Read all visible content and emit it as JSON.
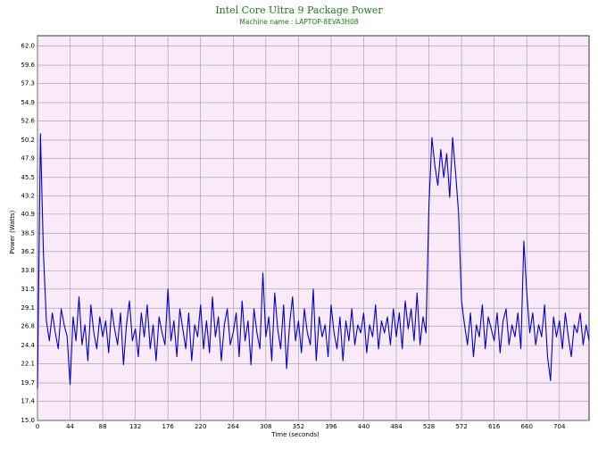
{
  "chart_data": {
    "type": "line",
    "title": "Intel Core Ultra 9 Package Power",
    "subtitle": "Machine name : LAPTOP-8EVA3H08",
    "xlabel": "Time (seconds)",
    "ylabel": "Power (Watts)",
    "xlim": [
      0,
      744
    ],
    "ylim": [
      15,
      63.3
    ],
    "xticks": [
      0,
      44,
      88,
      132,
      176,
      220,
      264,
      308,
      352,
      396,
      440,
      484,
      528,
      572,
      616,
      660,
      704
    ],
    "yticks": [
      {
        "value": 15,
        "label": "15.0"
      },
      17.4,
      19.7,
      22.1,
      24.4,
      26.8,
      29.1,
      31.5,
      33.8,
      36.2,
      38.5,
      40.9,
      43.2,
      45.5,
      47.9,
      50.2,
      52.6,
      54.9,
      57.3,
      59.6,
      {
        "value": 62,
        "label": "62.0"
      }
    ],
    "grid": true,
    "x": [
      0,
      4,
      8,
      12,
      16,
      20,
      24,
      28,
      32,
      36,
      40,
      44,
      48,
      52,
      56,
      60,
      64,
      68,
      72,
      76,
      80,
      84,
      88,
      92,
      96,
      100,
      104,
      108,
      112,
      116,
      120,
      124,
      128,
      132,
      136,
      140,
      144,
      148,
      152,
      156,
      160,
      164,
      168,
      172,
      176,
      180,
      184,
      188,
      192,
      196,
      200,
      204,
      208,
      212,
      216,
      220,
      224,
      228,
      232,
      236,
      240,
      244,
      248,
      252,
      256,
      260,
      264,
      268,
      272,
      276,
      280,
      284,
      288,
      292,
      296,
      300,
      304,
      308,
      312,
      316,
      320,
      324,
      328,
      332,
      336,
      340,
      344,
      348,
      352,
      356,
      360,
      364,
      368,
      372,
      376,
      380,
      384,
      388,
      392,
      396,
      400,
      404,
      408,
      412,
      416,
      420,
      424,
      428,
      432,
      436,
      440,
      444,
      448,
      452,
      456,
      460,
      464,
      468,
      472,
      476,
      480,
      484,
      488,
      492,
      496,
      500,
      504,
      508,
      512,
      516,
      520,
      524,
      528,
      532,
      536,
      540,
      544,
      548,
      552,
      556,
      560,
      564,
      568,
      572,
      576,
      580,
      584,
      588,
      592,
      596,
      600,
      604,
      608,
      612,
      616,
      620,
      624,
      628,
      632,
      636,
      640,
      644,
      648,
      652,
      656,
      660,
      664,
      668,
      672,
      676,
      680,
      684,
      688,
      692,
      696,
      700,
      704,
      708,
      712,
      716,
      720,
      724,
      728,
      732,
      736,
      740,
      744
    ],
    "series": [
      {
        "name": "Package Power",
        "color": "#0000cc",
        "values": [
          19.0,
          51.0,
          36.0,
          27.5,
          25.0,
          28.5,
          26.0,
          24.0,
          29.0,
          27.0,
          25.5,
          19.5,
          28.0,
          25.0,
          30.5,
          24.5,
          27.0,
          22.5,
          29.5,
          26.0,
          24.0,
          28.0,
          25.5,
          27.5,
          23.5,
          29.0,
          26.5,
          24.5,
          28.5,
          22.0,
          27.0,
          30.0,
          25.0,
          26.5,
          23.0,
          28.5,
          25.5,
          29.5,
          24.0,
          27.0,
          22.5,
          28.0,
          26.0,
          24.5,
          31.5,
          25.0,
          27.5,
          23.0,
          29.0,
          26.5,
          24.0,
          28.5,
          22.5,
          27.0,
          25.5,
          29.5,
          24.0,
          27.5,
          23.5,
          30.5,
          25.5,
          28.0,
          22.5,
          27.0,
          29.0,
          24.5,
          26.0,
          28.5,
          23.0,
          30.0,
          25.0,
          27.5,
          22.0,
          29.0,
          26.0,
          24.0,
          33.5,
          25.5,
          28.0,
          22.5,
          31.0,
          26.5,
          24.0,
          29.5,
          21.5,
          27.0,
          30.5,
          25.0,
          27.5,
          23.5,
          29.0,
          26.0,
          24.5,
          31.5,
          22.5,
          28.0,
          25.5,
          27.0,
          23.0,
          29.5,
          26.0,
          24.0,
          28.0,
          22.5,
          27.5,
          25.0,
          29.0,
          24.5,
          27.0,
          26.0,
          28.5,
          23.5,
          27.0,
          25.5,
          29.5,
          24.0,
          27.5,
          26.0,
          28.0,
          24.5,
          29.0,
          25.5,
          28.5,
          24.0,
          30.0,
          26.5,
          29.0,
          25.0,
          31.0,
          24.5,
          28.0,
          26.0,
          42.0,
          50.5,
          47.0,
          44.5,
          49.0,
          45.5,
          48.5,
          43.0,
          50.5,
          46.0,
          41.0,
          30.0,
          27.0,
          24.5,
          28.5,
          23.0,
          27.0,
          25.5,
          29.5,
          24.0,
          28.0,
          26.5,
          25.0,
          28.5,
          23.5,
          27.5,
          29.0,
          24.5,
          27.0,
          25.5,
          28.5,
          24.0,
          37.5,
          31.0,
          26.0,
          28.5,
          24.5,
          27.0,
          25.5,
          29.5,
          23.0,
          20.0,
          28.0,
          25.5,
          27.5,
          24.0,
          28.5,
          25.5,
          23.0,
          27.0,
          26.0,
          28.5,
          24.5,
          27.0,
          25.0
        ]
      }
    ]
  }
}
